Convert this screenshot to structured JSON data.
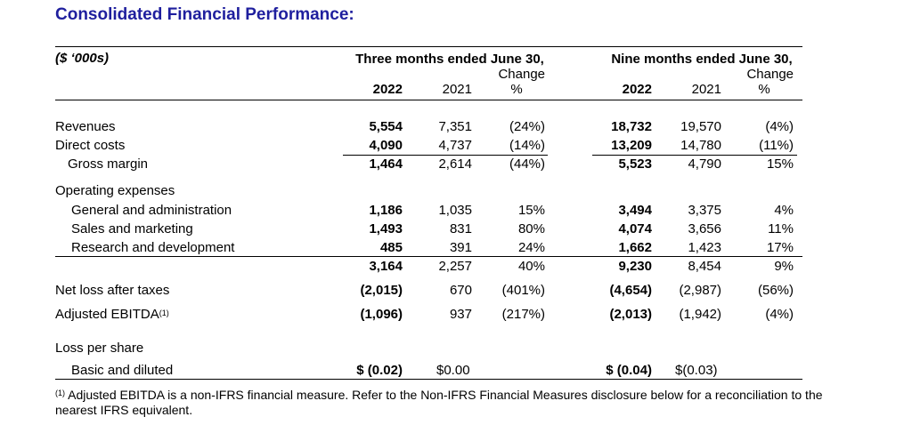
{
  "title": "Consolidated Financial Performance:",
  "units_label": "($ ‘000s)",
  "period_three": "Three months ended June 30,",
  "period_nine": "Nine months ended June 30,",
  "change_label": "Change",
  "pct_label": "%",
  "year_current": "2022",
  "year_prior": "2021",
  "rows": {
    "revenues": {
      "label": "Revenues",
      "q22": "5,554",
      "q21": "7,351",
      "qchg": "(24%)",
      "n22": "18,732",
      "n21": "19,570",
      "nchg": "(4%)"
    },
    "direct": {
      "label": "Direct costs",
      "q22": "4,090",
      "q21": "4,737",
      "qchg": "(14%)",
      "n22": "13,209",
      "n21": "14,780",
      "nchg": "(11%)"
    },
    "gross": {
      "label": "Gross margin",
      "q22": "1,464",
      "q21": "2,614",
      "qchg": "(44%)",
      "n22": "5,523",
      "n21": "4,790",
      "nchg": "15%"
    },
    "opex_head": {
      "label": "Operating expenses"
    },
    "ga": {
      "label": "General and administration",
      "q22": "1,186",
      "q21": "1,035",
      "qchg": "15%",
      "n22": "3,494",
      "n21": "3,375",
      "nchg": "4%"
    },
    "sm": {
      "label": "Sales and marketing",
      "q22": "1,493",
      "q21": "831",
      "qchg": "80%",
      "n22": "4,074",
      "n21": "3,656",
      "nchg": "11%"
    },
    "rd": {
      "label": "Research and development",
      "q22": "485",
      "q21": "391",
      "qchg": "24%",
      "n22": "1,662",
      "n21": "1,423",
      "nchg": "17%"
    },
    "opex_total": {
      "label": "",
      "q22": "3,164",
      "q21": "2,257",
      "qchg": "40%",
      "n22": "9,230",
      "n21": "8,454",
      "nchg": "9%"
    },
    "netloss": {
      "label": "Net loss after taxes",
      "q22": "(2,015)",
      "q21": "670",
      "qchg": "(401%)",
      "n22": "(4,654)",
      "n21": "(2,987)",
      "nchg": "(56%)"
    },
    "ebitda": {
      "label": "Adjusted EBITDA",
      "sup": "(1)",
      "q22": "(1,096)",
      "q21": "937",
      "qchg": "(217%)",
      "n22": "(2,013)",
      "n21": "(1,942)",
      "nchg": "(4%)"
    },
    "lps_head": {
      "label": "Loss per share"
    },
    "basic": {
      "label": "Basic and diluted",
      "q22": "$ (0.02)",
      "q21": "$0.00",
      "n22": "$ (0.04)",
      "n21": "$(0.03)"
    }
  },
  "footnote_mark": "(1)",
  "footnote": "Adjusted EBITDA is a non-IFRS financial measure. Refer to the Non-IFRS Financial Measures disclosure below for a reconciliation to the nearest IFRS equivalent."
}
